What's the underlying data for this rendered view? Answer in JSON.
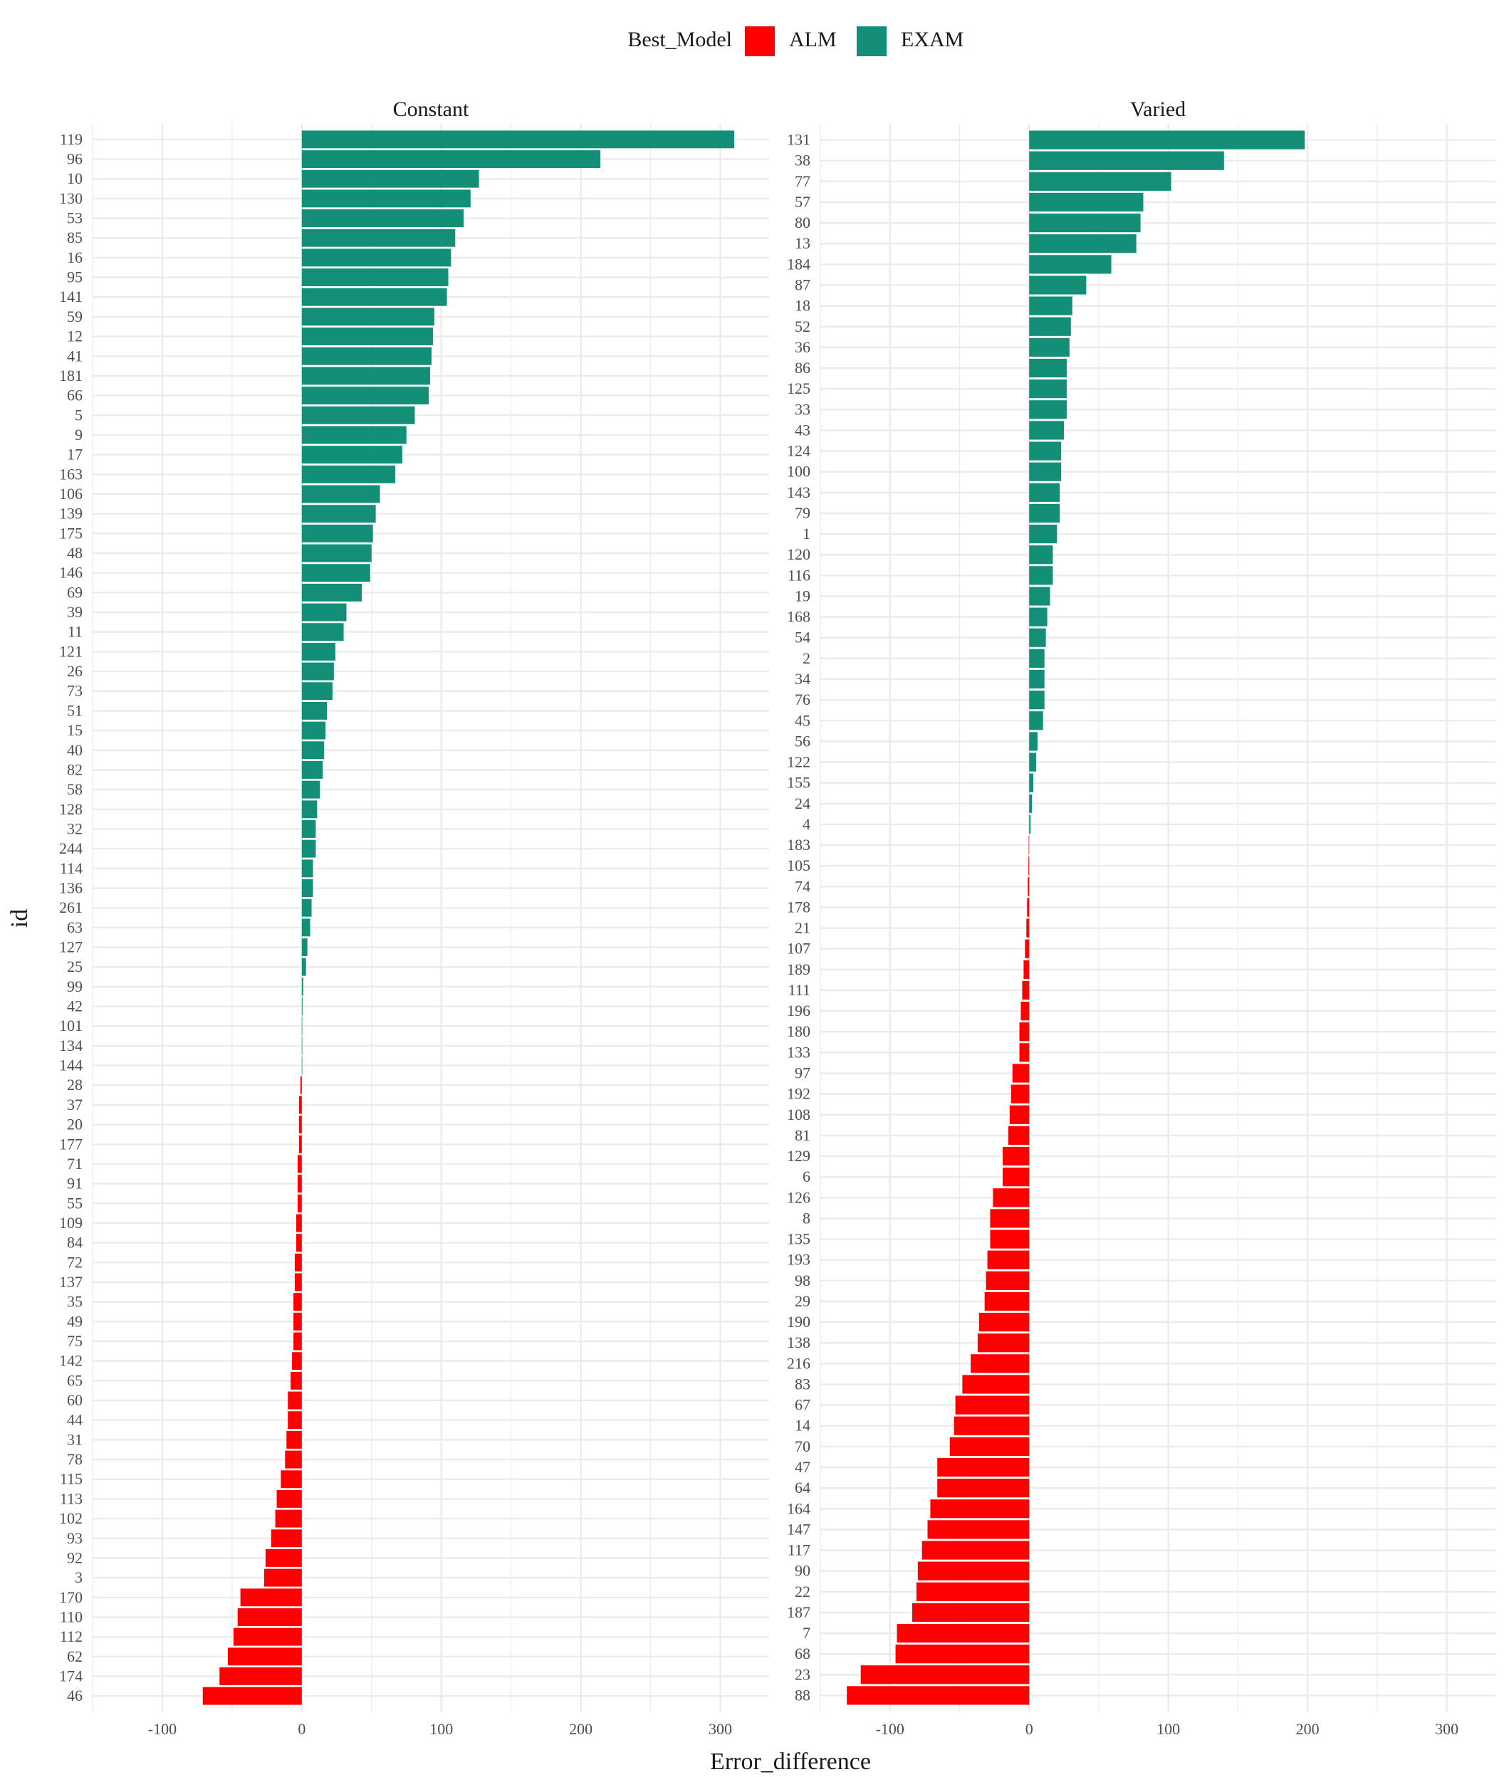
{
  "chart_data": {
    "type": "bar",
    "orientation": "horizontal",
    "xlabel": "Error_difference",
    "ylabel": "id",
    "xlim": [
      -150,
      335
    ],
    "xticks": [
      -100,
      0,
      100,
      200,
      300
    ],
    "grid": true,
    "legend": {
      "title": "Best_Model",
      "placement": "top",
      "entries": [
        {
          "label": "ALM",
          "color": "#ff0000"
        },
        {
          "label": "EXAM",
          "color": "#138f77"
        }
      ]
    },
    "panels": [
      {
        "name": "Constant",
        "categories": [
          "119",
          "96",
          "10",
          "130",
          "53",
          "85",
          "16",
          "95",
          "141",
          "59",
          "12",
          "41",
          "181",
          "66",
          "5",
          "9",
          "17",
          "163",
          "106",
          "139",
          "175",
          "48",
          "146",
          "69",
          "39",
          "11",
          "121",
          "26",
          "73",
          "51",
          "15",
          "40",
          "82",
          "58",
          "128",
          "32",
          "244",
          "114",
          "136",
          "261",
          "63",
          "127",
          "25",
          "99",
          "42",
          "101",
          "134",
          "144",
          "28",
          "37",
          "20",
          "177",
          "71",
          "91",
          "55",
          "109",
          "84",
          "72",
          "137",
          "35",
          "49",
          "75",
          "142",
          "65",
          "60",
          "44",
          "31",
          "78",
          "115",
          "113",
          "102",
          "93",
          "92",
          "3",
          "170",
          "110",
          "112",
          "62",
          "174",
          "46"
        ],
        "values": [
          310,
          214,
          127,
          121,
          116,
          110,
          107,
          105,
          104,
          95,
          94,
          93,
          92,
          91,
          81,
          75,
          72,
          67,
          56,
          53,
          51,
          50,
          49,
          43,
          32,
          30,
          24,
          23,
          22,
          18,
          17,
          16,
          15,
          13,
          11,
          10,
          10,
          8,
          8,
          7,
          6,
          4,
          3,
          1,
          0.5,
          0.3,
          0.2,
          0.1,
          -1,
          -2,
          -2,
          -2,
          -3,
          -3,
          -3,
          -4,
          -4,
          -5,
          -5,
          -6,
          -6,
          -6,
          -7,
          -8,
          -10,
          -10,
          -11,
          -12,
          -15,
          -18,
          -19,
          -22,
          -26,
          -27,
          -44,
          -46,
          -49,
          -53,
          -59,
          -71
        ],
        "best_model": [
          "EXAM",
          "EXAM",
          "EXAM",
          "EXAM",
          "EXAM",
          "EXAM",
          "EXAM",
          "EXAM",
          "EXAM",
          "EXAM",
          "EXAM",
          "EXAM",
          "EXAM",
          "EXAM",
          "EXAM",
          "EXAM",
          "EXAM",
          "EXAM",
          "EXAM",
          "EXAM",
          "EXAM",
          "EXAM",
          "EXAM",
          "EXAM",
          "EXAM",
          "EXAM",
          "EXAM",
          "EXAM",
          "EXAM",
          "EXAM",
          "EXAM",
          "EXAM",
          "EXAM",
          "EXAM",
          "EXAM",
          "EXAM",
          "EXAM",
          "EXAM",
          "EXAM",
          "EXAM",
          "EXAM",
          "EXAM",
          "EXAM",
          "EXAM",
          "EXAM",
          "EXAM",
          "EXAM",
          "EXAM",
          "ALM",
          "ALM",
          "ALM",
          "ALM",
          "ALM",
          "ALM",
          "ALM",
          "ALM",
          "ALM",
          "ALM",
          "ALM",
          "ALM",
          "ALM",
          "ALM",
          "ALM",
          "ALM",
          "ALM",
          "ALM",
          "ALM",
          "ALM",
          "ALM",
          "ALM",
          "ALM",
          "ALM",
          "ALM",
          "ALM",
          "ALM",
          "ALM",
          "ALM",
          "ALM",
          "ALM",
          "ALM"
        ]
      },
      {
        "name": "Varied",
        "categories": [
          "131",
          "38",
          "77",
          "57",
          "80",
          "13",
          "184",
          "87",
          "18",
          "52",
          "36",
          "86",
          "125",
          "33",
          "43",
          "124",
          "100",
          "143",
          "79",
          "1",
          "120",
          "116",
          "19",
          "168",
          "54",
          "2",
          "34",
          "76",
          "45",
          "56",
          "122",
          "155",
          "24",
          "4",
          "183",
          "105",
          "74",
          "178",
          "21",
          "107",
          "189",
          "111",
          "196",
          "180",
          "133",
          "97",
          "192",
          "108",
          "81",
          "129",
          "6",
          "126",
          "8",
          "135",
          "193",
          "98",
          "29",
          "190",
          "138",
          "216",
          "83",
          "67",
          "14",
          "70",
          "47",
          "64",
          "164",
          "147",
          "117",
          "90",
          "22",
          "187",
          "7",
          "68",
          "23",
          "88"
        ],
        "values": [
          198,
          140,
          102,
          82,
          80,
          77,
          59,
          41,
          31,
          30,
          29,
          27,
          27,
          27,
          25,
          23,
          23,
          22,
          22,
          20,
          17,
          17,
          15,
          13,
          12,
          11,
          11,
          11,
          10,
          6,
          5,
          3,
          2,
          1,
          -0.3,
          -0.5,
          -1,
          -1.5,
          -2,
          -3,
          -4,
          -5,
          -6,
          -7,
          -7,
          -12,
          -13,
          -14,
          -15,
          -19,
          -19,
          -26,
          -28,
          -28,
          -30,
          -31,
          -32,
          -36,
          -37,
          -42,
          -48,
          -53,
          -54,
          -57,
          -66,
          -66,
          -71,
          -73,
          -77,
          -80,
          -81,
          -84,
          -95,
          -96,
          -121,
          -131
        ],
        "best_model": [
          "EXAM",
          "EXAM",
          "EXAM",
          "EXAM",
          "EXAM",
          "EXAM",
          "EXAM",
          "EXAM",
          "EXAM",
          "EXAM",
          "EXAM",
          "EXAM",
          "EXAM",
          "EXAM",
          "EXAM",
          "EXAM",
          "EXAM",
          "EXAM",
          "EXAM",
          "EXAM",
          "EXAM",
          "EXAM",
          "EXAM",
          "EXAM",
          "EXAM",
          "EXAM",
          "EXAM",
          "EXAM",
          "EXAM",
          "EXAM",
          "EXAM",
          "EXAM",
          "EXAM",
          "EXAM",
          "ALM",
          "ALM",
          "ALM",
          "ALM",
          "ALM",
          "ALM",
          "ALM",
          "ALM",
          "ALM",
          "ALM",
          "ALM",
          "ALM",
          "ALM",
          "ALM",
          "ALM",
          "ALM",
          "ALM",
          "ALM",
          "ALM",
          "ALM",
          "ALM",
          "ALM",
          "ALM",
          "ALM",
          "ALM",
          "ALM",
          "ALM",
          "ALM",
          "ALM",
          "ALM",
          "ALM",
          "ALM",
          "ALM",
          "ALM",
          "ALM",
          "ALM",
          "ALM",
          "ALM",
          "ALM",
          "ALM",
          "ALM",
          "ALM"
        ]
      }
    ]
  }
}
